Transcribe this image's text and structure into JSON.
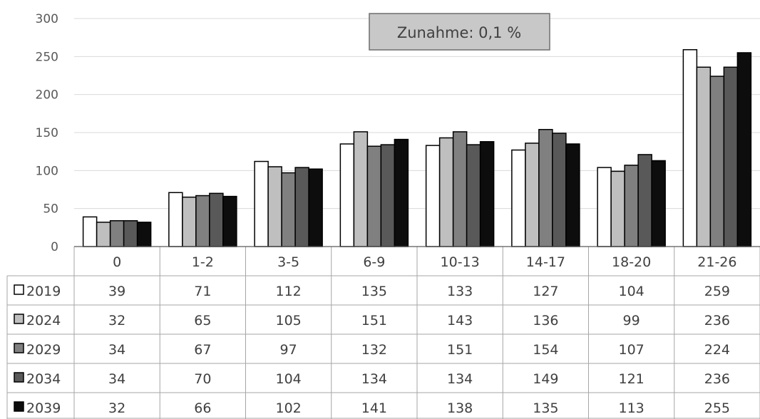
{
  "chart_data": {
    "type": "bar",
    "categories": [
      "0",
      "1-2",
      "3-5",
      "6-9",
      "10-13",
      "14-17",
      "18-20",
      "21-26"
    ],
    "series": [
      {
        "name": "2019",
        "color": "#ffffff",
        "values": [
          39,
          71,
          112,
          135,
          133,
          127,
          104,
          259
        ]
      },
      {
        "name": "2024",
        "color": "#bfbfbf",
        "values": [
          32,
          65,
          105,
          151,
          143,
          136,
          99,
          236
        ]
      },
      {
        "name": "2029",
        "color": "#808080",
        "values": [
          34,
          67,
          97,
          132,
          151,
          154,
          107,
          224
        ]
      },
      {
        "name": "2034",
        "color": "#595959",
        "values": [
          34,
          70,
          104,
          134,
          134,
          149,
          121,
          236
        ]
      },
      {
        "name": "2039",
        "color": "#0d0d0d",
        "values": [
          32,
          66,
          102,
          141,
          138,
          135,
          113,
          255
        ]
      }
    ],
    "ylim": [
      0,
      300
    ],
    "yticks": [
      0,
      50,
      100,
      150,
      200,
      250,
      300
    ],
    "grid": true,
    "annotation": "Zunahme: 0,1 %",
    "legend": "data-table"
  }
}
